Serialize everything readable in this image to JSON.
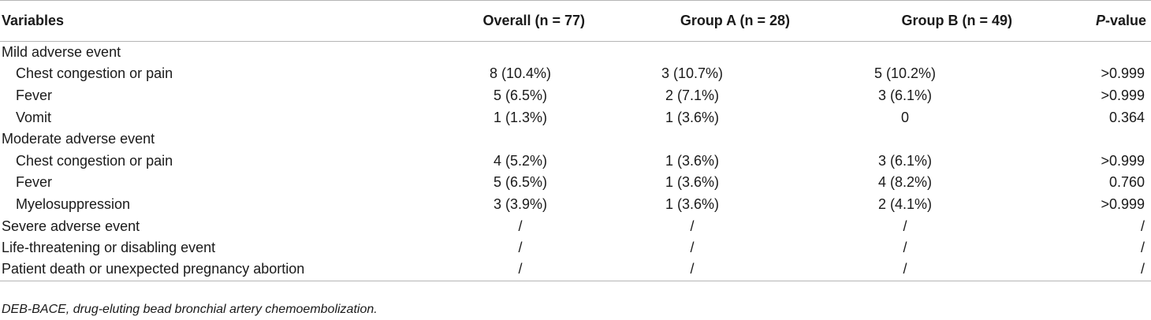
{
  "table": {
    "headers": {
      "variables": "Variables",
      "overall": "Overall (n = 77)",
      "group_a": "Group A (n = 28)",
      "group_b": "Group B (n = 49)",
      "p_italic": "P",
      "p_rest": "-value"
    },
    "rows": [
      {
        "label": "Mild adverse event",
        "overall": "",
        "group_a": "",
        "group_b": "",
        "p": ""
      },
      {
        "label": "Chest congestion or pain",
        "overall": "8 (10.4%)",
        "group_a": "3 (10.7%)",
        "group_b": "5 (10.2%)",
        "p": ">0.999"
      },
      {
        "label": "Fever",
        "overall": "5 (6.5%)",
        "group_a": "2 (7.1%)",
        "group_b": "3 (6.1%)",
        "p": ">0.999"
      },
      {
        "label": "Vomit",
        "overall": "1 (1.3%)",
        "group_a": "1 (3.6%)",
        "group_b": "0",
        "p": "0.364"
      },
      {
        "label": "Moderate adverse event",
        "overall": "",
        "group_a": "",
        "group_b": "",
        "p": ""
      },
      {
        "label": "Chest congestion or pain",
        "overall": "4 (5.2%)",
        "group_a": "1 (3.6%)",
        "group_b": "3 (6.1%)",
        "p": ">0.999"
      },
      {
        "label": "Fever",
        "overall": "5 (6.5%)",
        "group_a": "1 (3.6%)",
        "group_b": "4 (8.2%)",
        "p": "0.760"
      },
      {
        "label": "Myelosuppression",
        "overall": "3 (3.9%)",
        "group_a": "1 (3.6%)",
        "group_b": "2 (4.1%)",
        "p": ">0.999"
      },
      {
        "label": "Severe adverse event",
        "overall": "/",
        "group_a": "/",
        "group_b": "/",
        "p": "/"
      },
      {
        "label": "Life-threatening or disabling event",
        "overall": "/",
        "group_a": "/",
        "group_b": "/",
        "p": "/"
      },
      {
        "label": "Patient death or unexpected pregnancy abortion",
        "overall": "/",
        "group_a": "/",
        "group_b": "/",
        "p": "/"
      }
    ]
  },
  "footnote": "DEB-BACE, drug-eluting bead bronchial artery chemoembolization."
}
